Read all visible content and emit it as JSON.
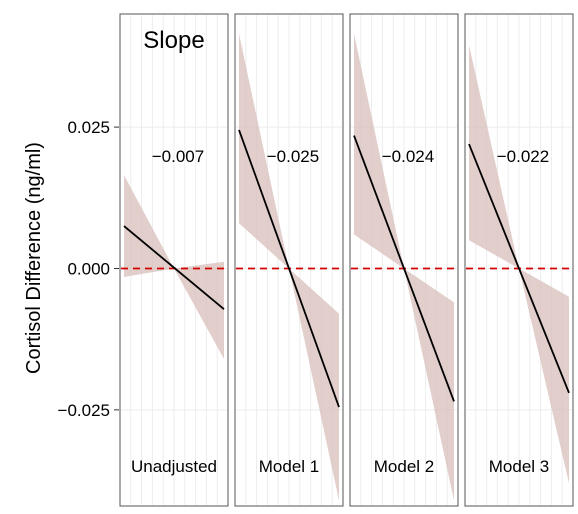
{
  "chart_data": {
    "type": "line",
    "title": "Slope",
    "ylabel": "Cortisol Difference (ng/ml)",
    "xlabel": "",
    "ylim": [
      -0.042,
      0.045
    ],
    "y_ticks": [
      {
        "value": 0.025,
        "label": "0.025"
      },
      {
        "value": 0.0,
        "label": "0.000"
      },
      {
        "value": -0.025,
        "label": "−0.025"
      }
    ],
    "reference_line": {
      "y": 0.0,
      "color": "#d40000",
      "style": "dashed"
    },
    "x_range": [
      0,
      1
    ],
    "grid": true,
    "colors": {
      "line": "#000000",
      "band": "#d8bfbb",
      "reference": "#d40000"
    },
    "panels": [
      {
        "name": "Unadjusted",
        "slope_label": "−0.007",
        "line": {
          "x": [
            0,
            1
          ],
          "y": [
            0.0075,
            -0.0072
          ]
        },
        "band": {
          "x": [
            0,
            0.5,
            1
          ],
          "lower": [
            -0.0015,
            0.0,
            -0.016
          ],
          "upper": [
            0.0165,
            0.0,
            0.0012
          ]
        }
      },
      {
        "name": "Model 1",
        "slope_label": "−0.025",
        "line": {
          "x": [
            0,
            1
          ],
          "y": [
            0.0245,
            -0.0245
          ]
        },
        "band": {
          "x": [
            0,
            0.5,
            1
          ],
          "lower": [
            0.008,
            0.0,
            -0.041
          ],
          "upper": [
            0.0415,
            0.0,
            -0.008
          ]
        }
      },
      {
        "name": "Model 2",
        "slope_label": "−0.024",
        "line": {
          "x": [
            0,
            1
          ],
          "y": [
            0.0235,
            -0.0235
          ]
        },
        "band": {
          "x": [
            0,
            0.5,
            1
          ],
          "lower": [
            0.006,
            0.0,
            -0.041
          ],
          "upper": [
            0.0415,
            0.0,
            -0.006
          ]
        }
      },
      {
        "name": "Model 3",
        "slope_label": "−0.022",
        "line": {
          "x": [
            0,
            1
          ],
          "y": [
            0.022,
            -0.022
          ]
        },
        "band": {
          "x": [
            0,
            0.5,
            1
          ],
          "lower": [
            0.005,
            0.0,
            -0.038
          ],
          "upper": [
            0.0395,
            0.0,
            -0.005
          ]
        }
      }
    ]
  }
}
